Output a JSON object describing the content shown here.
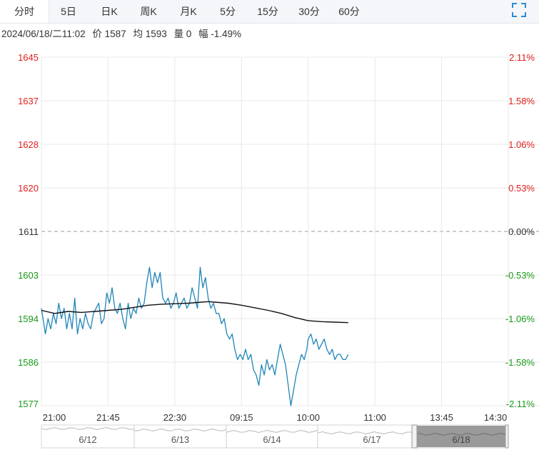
{
  "tabs": [
    {
      "label": "分时",
      "active": true
    },
    {
      "label": "5日",
      "active": false
    },
    {
      "label": "日K",
      "active": false
    },
    {
      "label": "周K",
      "active": false
    },
    {
      "label": "月K",
      "active": false
    },
    {
      "label": "5分",
      "active": false
    },
    {
      "label": "15分",
      "active": false
    },
    {
      "label": "30分",
      "active": false
    },
    {
      "label": "60分",
      "active": false
    }
  ],
  "info": {
    "datetime": "2024/06/18/二11:02",
    "price": "价 1587",
    "avg": "均 1593",
    "volume": "量 0",
    "change": "幅 -1.49%"
  },
  "colors": {
    "up": "#e02020",
    "down": "#1a9a1a",
    "price_line": "#1f86b8",
    "avg_line": "#111111",
    "grid": "#e8e8e8"
  },
  "chart_data": {
    "type": "line",
    "x_ticks": [
      "21:00",
      "21:45",
      "22:30",
      "09:15",
      "10:00",
      "11:00",
      "13:45",
      "14:30"
    ],
    "y_left_ticks": [
      1645,
      1637,
      1628,
      1620,
      1611,
      1603,
      1594,
      1586,
      1577
    ],
    "y_right_ticks": [
      "2.11%",
      "1.58%",
      "1.06%",
      "0.53%",
      "0.00%",
      "-0.53%",
      "-1.06%",
      "-1.58%",
      "-2.11%"
    ],
    "reference_price": 1611,
    "ylim": [
      1577,
      1645
    ],
    "series": [
      {
        "role": "price",
        "x": [
          0.0,
          0.06,
          0.1,
          0.14,
          0.18,
          0.22,
          0.26,
          0.3,
          0.34,
          0.38,
          0.42,
          0.46,
          0.5,
          0.54,
          0.58,
          0.62,
          0.66,
          0.7,
          0.74,
          0.78,
          0.82,
          0.86,
          0.9,
          0.94,
          0.98,
          1.02,
          1.06,
          1.1,
          1.14,
          1.18,
          1.22,
          1.26,
          1.3,
          1.34,
          1.38,
          1.42,
          1.46,
          1.5,
          1.54,
          1.58,
          1.62,
          1.66,
          1.7,
          1.74,
          1.78,
          1.82,
          1.86,
          1.9,
          1.94,
          1.98,
          2.02,
          2.06,
          2.1,
          2.14,
          2.18,
          2.22,
          2.26,
          2.3,
          2.34,
          2.38,
          2.42,
          2.46,
          2.5,
          2.54,
          2.58,
          2.62,
          2.66,
          2.7,
          2.74,
          2.78,
          2.82,
          2.86,
          2.9,
          2.94,
          2.98,
          3.02,
          3.06,
          3.1,
          3.14,
          3.18,
          3.22,
          3.26,
          3.3,
          3.34,
          3.38,
          3.42,
          3.46,
          3.5,
          3.54,
          3.58,
          3.62,
          3.66,
          3.7,
          3.74,
          3.78,
          3.82,
          3.86,
          3.9,
          3.94,
          3.98,
          4.0,
          4.04,
          4.08,
          4.12,
          4.16,
          4.2,
          4.24,
          4.28,
          4.32,
          4.36,
          4.4,
          4.44,
          4.48,
          4.52,
          4.56,
          4.6
        ],
        "values": [
          1596,
          1591,
          1594,
          1592,
          1595,
          1593,
          1597,
          1594,
          1596,
          1592,
          1595,
          1592,
          1598,
          1591,
          1594,
          1592,
          1595,
          1593,
          1592,
          1595,
          1596,
          1597,
          1593,
          1594,
          1599,
          1597,
          1600,
          1596,
          1595,
          1597,
          1594,
          1592,
          1597,
          1594,
          1596,
          1595,
          1598,
          1596,
          1597,
          1601,
          1604,
          1600,
          1603,
          1601,
          1603,
          1598,
          1597,
          1598,
          1596,
          1597,
          1599,
          1596,
          1597,
          1598,
          1596,
          1597,
          1600,
          1598,
          1596,
          1604,
          1600,
          1602,
          1598,
          1596,
          1597,
          1595,
          1595,
          1593,
          1594,
          1591,
          1590,
          1591,
          1588,
          1586,
          1587,
          1586,
          1588,
          1586,
          1587,
          1584,
          1583,
          1581,
          1585,
          1583,
          1586,
          1584,
          1585,
          1583,
          1586,
          1589,
          1587,
          1585,
          1581,
          1577,
          1580,
          1583,
          1585,
          1587,
          1586,
          1588,
          1590,
          1591,
          1589,
          1590,
          1588,
          1589,
          1590,
          1588,
          1587,
          1588,
          1586,
          1587,
          1587,
          1586,
          1586,
          1587
        ]
      },
      {
        "role": "average",
        "x": [
          0.0,
          0.2,
          0.4,
          0.6,
          0.8,
          1.0,
          1.2,
          1.4,
          1.6,
          1.8,
          2.0,
          2.2,
          2.4,
          2.5,
          2.6,
          2.8,
          3.0,
          3.2,
          3.4,
          3.6,
          3.8,
          4.0,
          4.2,
          4.4,
          4.6
        ],
        "values": [
          1595.6,
          1595.0,
          1595.4,
          1595.2,
          1595.4,
          1595.6,
          1595.8,
          1596.2,
          1596.6,
          1596.8,
          1596.9,
          1597.0,
          1597.2,
          1597.3,
          1597.2,
          1597.0,
          1596.6,
          1596.1,
          1595.6,
          1595.0,
          1594.2,
          1593.6,
          1593.4,
          1593.3,
          1593.2
        ]
      }
    ],
    "navigator": {
      "labels": [
        "6/12",
        "6/13",
        "6/14",
        "6/17",
        "6/18"
      ],
      "selected": "6/18"
    }
  }
}
